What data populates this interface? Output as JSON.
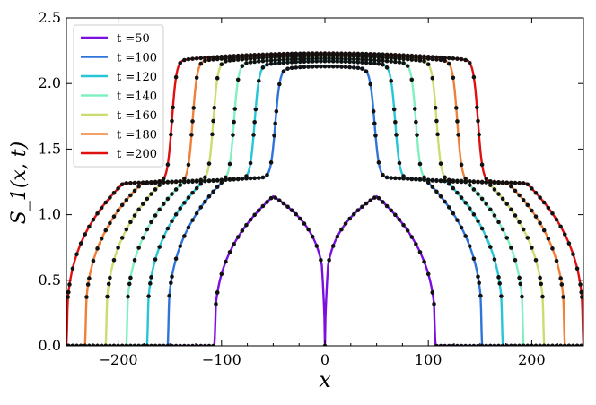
{
  "chart_data": {
    "type": "line",
    "title": "",
    "xlabel": "x",
    "ylabel": "S_1(x, t)",
    "xlim": [
      -250,
      250
    ],
    "ylim": [
      0.0,
      2.5
    ],
    "x_ticks": [
      -200,
      -100,
      0,
      100,
      200
    ],
    "x_tick_labels": [
      "−200",
      "−100",
      "0",
      "100",
      "200"
    ],
    "y_ticks": [
      0.0,
      0.5,
      1.0,
      1.5,
      2.0,
      2.5
    ],
    "y_tick_labels": [
      "0.0",
      "0.5",
      "1.0",
      "1.5",
      "2.0",
      "2.5"
    ],
    "grid": false,
    "legend_position": "top-left",
    "markers": "black circles overlaid on each curve",
    "series": [
      {
        "name": "t =50",
        "color": "#7a0fe0",
        "front": 107,
        "plateau_outer": 1.14,
        "peak_x": 50,
        "center_dip": 0.2,
        "has_inner": false
      },
      {
        "name": "t =100",
        "color": "#2f74d8",
        "front": 152,
        "plateau_outer": 1.25,
        "inner_edge": 48,
        "inner_top": 2.13,
        "has_inner": true
      },
      {
        "name": "t =120",
        "color": "#26c6d6",
        "front": 172,
        "plateau_outer": 1.24,
        "inner_edge": 68,
        "inner_top": 2.17,
        "has_inner": true
      },
      {
        "name": "t =140",
        "color": "#80f0c0",
        "front": 192,
        "plateau_outer": 1.23,
        "inner_edge": 88,
        "inner_top": 2.19,
        "has_inner": true
      },
      {
        "name": "t =160",
        "color": "#c8de70",
        "front": 212,
        "plateau_outer": 1.23,
        "inner_edge": 108,
        "inner_top": 2.21,
        "has_inner": true
      },
      {
        "name": "t =180",
        "color": "#f08038",
        "front": 232,
        "plateau_outer": 1.22,
        "inner_edge": 128,
        "inner_top": 2.22,
        "has_inner": true
      },
      {
        "name": "t =200",
        "color": "#e01010",
        "front": 250,
        "plateau_outer": 1.22,
        "inner_edge": 148,
        "inner_top": 2.23,
        "has_inner": true
      }
    ]
  }
}
